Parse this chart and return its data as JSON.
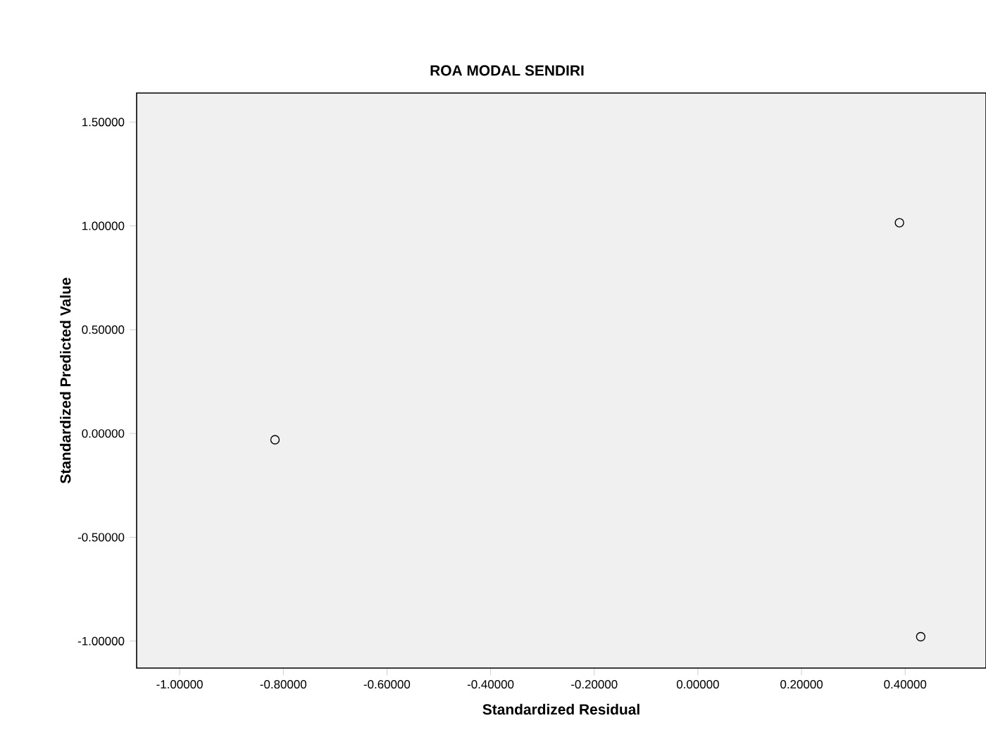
{
  "chart_data": {
    "type": "scatter",
    "title": "ROA MODAL SENDIRI",
    "xlabel": "Standardized Residual",
    "ylabel": "Standardized Predicted Value",
    "series": [
      {
        "color": "#000000",
        "x": [
          -0.816,
          0.389,
          0.43
        ],
        "values": [
          -0.03,
          1.015,
          -0.979
        ]
      }
    ],
    "marker": "circle",
    "grid": false,
    "xlim": [
      -1.083,
      0.556
    ],
    "ylim": [
      -1.13,
      1.64
    ],
    "xticks": [
      {
        "value": -1.0,
        "label": "-1.00000"
      },
      {
        "value": -0.8,
        "label": "-0.80000"
      },
      {
        "value": -0.6,
        "label": "-0.60000"
      },
      {
        "value": -0.4,
        "label": "-0.40000"
      },
      {
        "value": -0.2,
        "label": "-0.20000"
      },
      {
        "value": 0.0,
        "label": "0.00000"
      },
      {
        "value": 0.2,
        "label": "0.20000"
      },
      {
        "value": 0.4,
        "label": "0.40000"
      }
    ],
    "yticks": [
      {
        "value": -1.0,
        "label": "-1.00000"
      },
      {
        "value": -0.5,
        "label": "-0.50000"
      },
      {
        "value": 0.0,
        "label": "0.00000"
      },
      {
        "value": 0.5,
        "label": "0.50000"
      },
      {
        "value": 1.0,
        "label": "1.00000"
      },
      {
        "value": 1.5,
        "label": "1.50000"
      }
    ]
  }
}
